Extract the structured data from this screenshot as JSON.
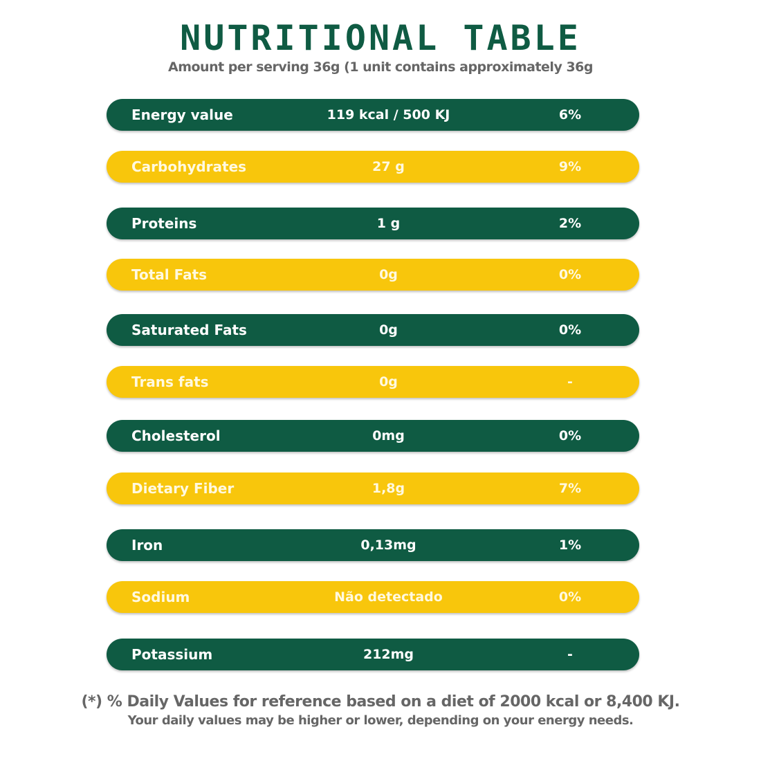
{
  "title": "NUTRITIONAL TABLE",
  "subtitle": "Amount per serving 36g (1 unit contains approximately 36g",
  "colors": {
    "green": "#0f5b43",
    "yellow": "#f8c60c"
  },
  "rows": [
    {
      "name": "Energy value",
      "amount": "119 kcal / 500 KJ",
      "dv": "6%"
    },
    {
      "name": "Carbohydrates",
      "amount": "27 g",
      "dv": "9%"
    },
    {
      "name": "Proteins",
      "amount": "1 g",
      "dv": "2%"
    },
    {
      "name": "Total Fats",
      "amount": "0g",
      "dv": "0%"
    },
    {
      "name": "Saturated Fats",
      "amount": "0g",
      "dv": "0%"
    },
    {
      "name": "Trans fats",
      "amount": "0g",
      "dv": "-"
    },
    {
      "name": "Cholesterol",
      "amount": "0mg",
      "dv": "0%"
    },
    {
      "name": "Dietary Fiber",
      "amount": "1,8g",
      "dv": "7%"
    },
    {
      "name": "Iron",
      "amount": "0,13mg",
      "dv": "1%"
    },
    {
      "name": "Sodium",
      "amount": "Não detectado",
      "dv": "0%"
    },
    {
      "name": "Potassium",
      "amount": "212mg",
      "dv": "-"
    }
  ],
  "footnote": {
    "line1": "(*) % Daily Values for reference based on a diet of 2000 kcal or 8,400 KJ.",
    "line2": "Your daily values may be higher or lower, depending on your energy needs."
  }
}
